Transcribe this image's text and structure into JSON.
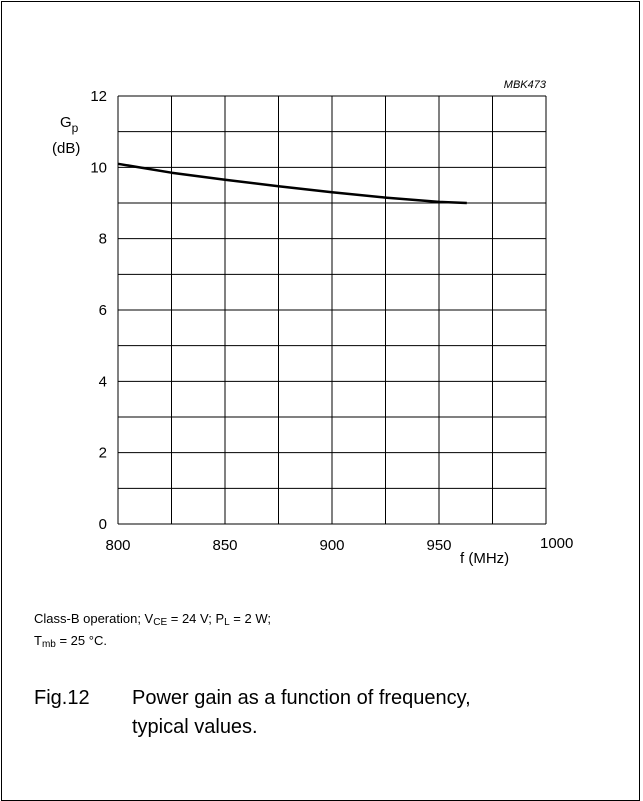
{
  "chart_data": {
    "type": "line",
    "figure_code": "MBK473",
    "ylabel_symbol": "G",
    "ylabel_sub": "p",
    "ylabel_unit": "(dB)",
    "xlabel": "f (MHz)",
    "xlim": [
      800,
      1000
    ],
    "ylim": [
      0,
      12
    ],
    "x_ticks": [
      "800",
      "850",
      "900",
      "950",
      "1000"
    ],
    "y_ticks": [
      "0",
      "2",
      "4",
      "6",
      "8",
      "10",
      "12"
    ],
    "grid": true,
    "series": [
      {
        "x": [
          800,
          825,
          850,
          875,
          900,
          925,
          950,
          963
        ],
        "y": [
          10.1,
          9.85,
          9.65,
          9.47,
          9.3,
          9.15,
          9.03,
          9.0
        ]
      }
    ]
  },
  "conditions": {
    "part1": "Class-B operation; V",
    "vce_sub": "CE",
    "part2": " = 24 V; P",
    "pl_sub": "L",
    "part3": " = 2 W;",
    "t_sym": "T",
    "t_sub": "mb",
    "part4": " = 25 °C."
  },
  "caption": {
    "number": "Fig.12",
    "line1": "Power gain as a function of frequency,",
    "line2": "typical values."
  }
}
